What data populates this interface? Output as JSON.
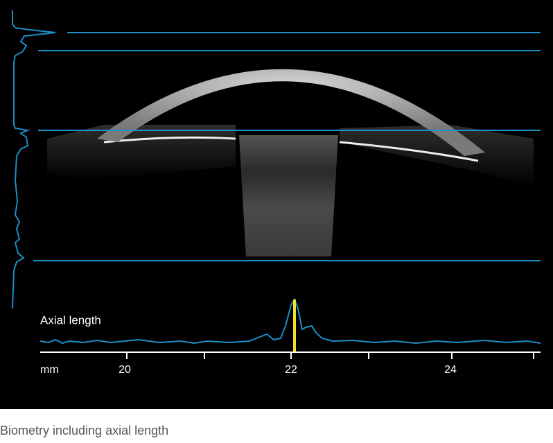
{
  "plot_label": "Axial length",
  "axis": {
    "unit": "mm",
    "tick_labels": [
      "20",
      "22",
      "24"
    ]
  },
  "caption": "Biometry including axial length"
}
